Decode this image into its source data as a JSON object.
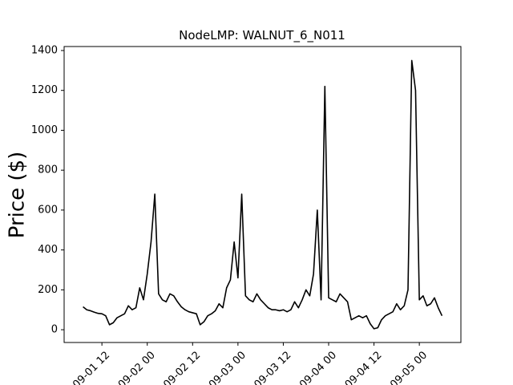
{
  "chart_data": {
    "type": "line",
    "title": "NodeLMP: WALNUT_6_N011",
    "y_label": "Price ($)",
    "x": [
      "09-01 07",
      "09-01 08",
      "09-01 09",
      "09-01 10",
      "09-01 11",
      "09-01 12",
      "09-01 13",
      "09-01 14",
      "09-01 15",
      "09-01 16",
      "09-01 17",
      "09-01 18",
      "09-01 19",
      "09-01 20",
      "09-01 21",
      "09-01 22",
      "09-01 23",
      "09-02 00",
      "09-02 01",
      "09-02 02",
      "09-02 03",
      "09-02 04",
      "09-02 05",
      "09-02 06",
      "09-02 07",
      "09-02 08",
      "09-02 09",
      "09-02 10",
      "09-02 11",
      "09-02 12",
      "09-02 13",
      "09-02 14",
      "09-02 15",
      "09-02 16",
      "09-02 17",
      "09-02 18",
      "09-02 19",
      "09-02 20",
      "09-02 21",
      "09-02 22",
      "09-02 23",
      "09-03 00",
      "09-03 01",
      "09-03 02",
      "09-03 03",
      "09-03 04",
      "09-03 05",
      "09-03 06",
      "09-03 07",
      "09-03 08",
      "09-03 09",
      "09-03 10",
      "09-03 11",
      "09-03 12",
      "09-03 13",
      "09-03 14",
      "09-03 15",
      "09-03 16",
      "09-03 17",
      "09-03 18",
      "09-03 19",
      "09-03 20",
      "09-03 21",
      "09-03 22",
      "09-03 23",
      "09-04 00",
      "09-04 01",
      "09-04 02",
      "09-04 03",
      "09-04 04",
      "09-04 05",
      "09-04 06",
      "09-04 07",
      "09-04 08",
      "09-04 09",
      "09-04 10",
      "09-04 11",
      "09-04 12",
      "09-04 13",
      "09-04 14",
      "09-04 15",
      "09-04 16",
      "09-04 17",
      "09-04 18",
      "09-04 19",
      "09-04 20",
      "09-04 21",
      "09-04 22",
      "09-04 23",
      "09-05 00",
      "09-05 01",
      "09-05 02",
      "09-05 03",
      "09-05 04",
      "09-05 05",
      "09-05 06"
    ],
    "series": [
      {
        "name": "WALNUT_6_N011",
        "color": "#000000",
        "values": [
          115,
          100,
          95,
          88,
          82,
          80,
          70,
          25,
          35,
          60,
          70,
          80,
          120,
          100,
          110,
          210,
          150,
          280,
          440,
          680,
          180,
          150,
          140,
          180,
          170,
          140,
          115,
          100,
          90,
          85,
          80,
          25,
          40,
          70,
          80,
          95,
          130,
          110,
          210,
          250,
          440,
          260,
          680,
          170,
          150,
          140,
          180,
          150,
          130,
          110,
          100,
          100,
          95,
          100,
          90,
          100,
          140,
          110,
          150,
          200,
          170,
          280,
          600,
          150,
          1220,
          160,
          150,
          140,
          180,
          160,
          140,
          50,
          60,
          70,
          60,
          70,
          30,
          5,
          10,
          50,
          70,
          80,
          90,
          130,
          100,
          120,
          200,
          1350,
          1200,
          150,
          170,
          120,
          130,
          160,
          110,
          70
        ]
      }
    ],
    "xlim": [
      "09-01 02",
      "09-05 11"
    ],
    "xticks": [
      "09-01 12",
      "09-02 00",
      "09-02 12",
      "09-03 00",
      "09-03 12",
      "09-04 00",
      "09-04 12",
      "09-05 00"
    ],
    "ylim": [
      -64,
      1420
    ],
    "yticks": [
      0,
      200,
      400,
      600,
      800,
      1000,
      1200,
      1400
    ]
  }
}
